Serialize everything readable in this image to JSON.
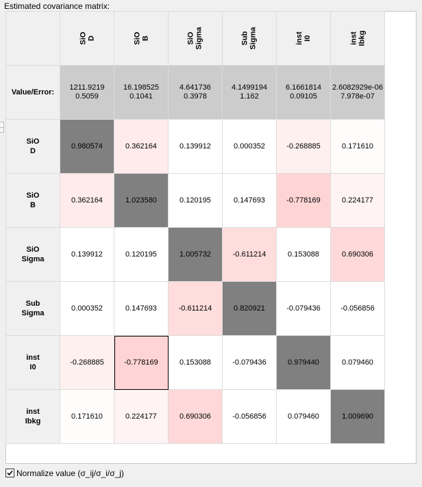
{
  "title": "Estimated covariance matrix:",
  "columns": [
    {
      "line1": "SiO",
      "line2": "D"
    },
    {
      "line1": "SiO",
      "line2": "B"
    },
    {
      "line1": "SiO",
      "line2": "Sigma"
    },
    {
      "line1": "Sub",
      "line2": "Sigma"
    },
    {
      "line1": "inst",
      "line2": "I0"
    },
    {
      "line1": "inst",
      "line2": "Ibkg"
    }
  ],
  "value_row": {
    "label": "Value/Error:",
    "values": [
      {
        "value": "1211.9219",
        "error": "0.5059"
      },
      {
        "value": "16.198525",
        "error": "0.1041"
      },
      {
        "value": "4.641736",
        "error": "0.3978"
      },
      {
        "value": "4.1499194",
        "error": "1.162"
      },
      {
        "value": "6.1661814",
        "error": "0.09105"
      },
      {
        "value": "2.6082929e-06",
        "error": "7.978e-07"
      }
    ]
  },
  "rows": [
    {
      "line1": "SiO",
      "line2": "D",
      "cells": [
        "0.980574",
        "0.362164",
        "0.139912",
        "0.000352",
        "-0.268885",
        "0.171610"
      ]
    },
    {
      "line1": "SiO",
      "line2": "B",
      "cells": [
        "0.362164",
        "1.023580",
        "0.120195",
        "0.147693",
        "-0.778169",
        "0.224177"
      ]
    },
    {
      "line1": "SiO",
      "line2": "Sigma",
      "cells": [
        "0.139912",
        "0.120195",
        "1.005732",
        "-0.611214",
        "0.153088",
        "0.690306"
      ]
    },
    {
      "line1": "Sub",
      "line2": "Sigma",
      "cells": [
        "0.000352",
        "0.147693",
        "-0.611214",
        "0.820921",
        "-0.079436",
        "-0.056856"
      ]
    },
    {
      "line1": "inst",
      "line2": "I0",
      "cells": [
        "-0.268885",
        "-0.778169",
        "0.153088",
        "-0.079436",
        "0.979440",
        "0.079460"
      ]
    },
    {
      "line1": "inst",
      "line2": "Ibkg",
      "cells": [
        "0.171610",
        "0.224177",
        "0.690306",
        "-0.056856",
        "0.079460",
        "1.009690"
      ]
    }
  ],
  "selected_cell": {
    "row": 4,
    "col": 1
  },
  "colors": {
    "diagonal": "#808080",
    "highlight_base": [
      255,
      200,
      200
    ]
  },
  "normalize": {
    "checked": true,
    "label": "Normalize value (σ_ij/σ_i/σ_j)"
  }
}
